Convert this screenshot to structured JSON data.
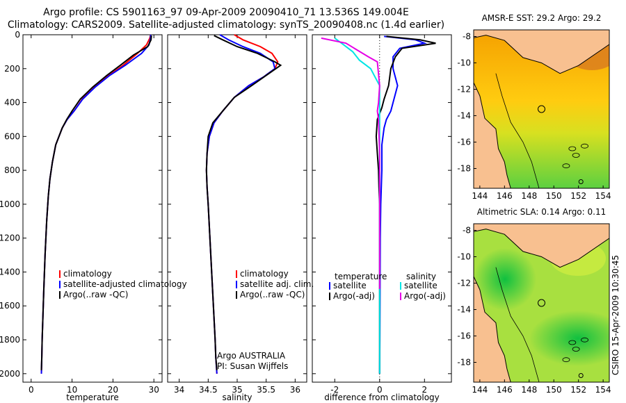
{
  "titles": {
    "line1": "Argo profile: CS 5901163_97 09-Apr-2009 20090410_71 13.536S 149.004E",
    "line2": "Climatology: CARS2009. Satellite-adjusted climatology: synTS_20090408.nc (1.4d earlier)"
  },
  "side_label": "CSIRO 15-Apr-2009 10:30:45",
  "colors": {
    "climatology": "#ff0000",
    "satellite": "#0000ff",
    "argo": "#000000",
    "sat_diff": "#00e5e5",
    "argo_diff": "#e600e6"
  },
  "chart_data": [
    {
      "type": "line",
      "name": "temperature-profile",
      "xlabel": "temperature",
      "ylabel": "",
      "xlim": [
        -2,
        32
      ],
      "ylim": [
        2050,
        0
      ],
      "xticks": [
        0,
        10,
        20,
        30
      ],
      "yticks": [
        0,
        200,
        400,
        600,
        800,
        1000,
        1200,
        1400,
        1600,
        1800,
        2000
      ],
      "legend": [
        "climatology",
        "satellite-adjusted climatology",
        "Argo(..raw -QC)"
      ],
      "series": [
        {
          "name": "climatology",
          "color": "#ff0000",
          "x": [
            29.2,
            29.0,
            28.2,
            26.0,
            22.5,
            19.0,
            15.5,
            12.5,
            10.5,
            8.8,
            7.6,
            6.0,
            5.2,
            4.6,
            4.2,
            3.8,
            3.4,
            3.1,
            2.9,
            2.7,
            2.6,
            2.5
          ],
          "y": [
            0,
            20,
            60,
            110,
            180,
            240,
            310,
            380,
            450,
            500,
            550,
            650,
            750,
            850,
            950,
            1100,
            1300,
            1500,
            1650,
            1800,
            1900,
            2000
          ]
        },
        {
          "name": "satellite-adjusted climatology",
          "color": "#0000ff",
          "x": [
            29.2,
            29.2,
            28.8,
            27.0,
            23.0,
            19.2,
            15.6,
            12.6,
            10.5,
            8.8,
            7.6,
            6.0,
            5.2,
            4.6,
            4.2,
            3.8,
            3.4,
            3.1,
            2.9,
            2.7,
            2.6,
            2.5
          ],
          "y": [
            0,
            20,
            60,
            110,
            180,
            240,
            310,
            380,
            450,
            500,
            550,
            650,
            750,
            850,
            950,
            1100,
            1300,
            1500,
            1650,
            1800,
            1900,
            2000
          ]
        },
        {
          "name": "Argo(..raw -QC)",
          "color": "#000000",
          "x": [
            29.4,
            29.3,
            28.5,
            25.0,
            21.8,
            18.5,
            15.0,
            12.0,
            10.0,
            8.7,
            7.6,
            6.0,
            5.2,
            4.6,
            4.2,
            3.8,
            3.4,
            3.1,
            2.9,
            2.7,
            2.6,
            2.5
          ],
          "y": [
            5,
            30,
            70,
            120,
            180,
            240,
            310,
            380,
            450,
            500,
            550,
            650,
            750,
            850,
            950,
            1100,
            1300,
            1500,
            1650,
            1800,
            1900,
            1980
          ]
        }
      ]
    },
    {
      "type": "line",
      "name": "salinity-profile",
      "xlabel": "salinity",
      "ylabel": "",
      "xlim": [
        33.8,
        36.2
      ],
      "ylim": [
        2050,
        0
      ],
      "xticks": [
        34,
        34.5,
        35,
        35.5,
        36
      ],
      "yticks": [
        0,
        200,
        400,
        600,
        800,
        1000,
        1200,
        1400,
        1600,
        1800,
        2000
      ],
      "legend": [
        "climatology",
        "satellite adj. clim.",
        "Argo(..raw -QC)"
      ],
      "annotations": [
        "Argo AUSTRALIA",
        "PI: Susan Wijffels"
      ],
      "series": [
        {
          "name": "climatology",
          "color": "#ff0000",
          "x": [
            34.95,
            35.1,
            35.4,
            35.6,
            35.7,
            35.65,
            35.45,
            35.2,
            34.95,
            34.75,
            34.6,
            34.52,
            34.48,
            34.47,
            34.48,
            34.5,
            34.53,
            34.56,
            34.59,
            34.62,
            34.63,
            34.65
          ],
          "y": [
            0,
            30,
            70,
            110,
            160,
            200,
            250,
            300,
            370,
            450,
            520,
            600,
            700,
            800,
            900,
            1000,
            1200,
            1400,
            1600,
            1800,
            1900,
            2000
          ]
        },
        {
          "name": "satellite adj. clim.",
          "color": "#0000ff",
          "x": [
            34.7,
            34.85,
            35.1,
            35.4,
            35.62,
            35.65,
            35.45,
            35.2,
            34.95,
            34.75,
            34.6,
            34.52,
            34.48,
            34.47,
            34.48,
            34.5,
            34.53,
            34.56,
            34.59,
            34.62,
            34.63,
            34.65
          ],
          "y": [
            0,
            30,
            70,
            110,
            160,
            200,
            250,
            300,
            370,
            450,
            520,
            600,
            700,
            800,
            900,
            1000,
            1200,
            1400,
            1600,
            1800,
            1900,
            2000
          ]
        },
        {
          "name": "Argo(..raw -QC)",
          "color": "#000000",
          "x": [
            34.6,
            34.75,
            35.0,
            35.35,
            35.65,
            35.75,
            35.5,
            35.25,
            34.95,
            34.75,
            34.58,
            34.5,
            34.48,
            34.47,
            34.48,
            34.5,
            34.53,
            34.56,
            34.59,
            34.62,
            34.63,
            34.65
          ],
          "y": [
            5,
            30,
            70,
            110,
            160,
            180,
            240,
            300,
            370,
            450,
            520,
            600,
            700,
            800,
            900,
            1000,
            1200,
            1400,
            1600,
            1800,
            1900,
            1980
          ]
        }
      ]
    },
    {
      "type": "line",
      "name": "difference-profile",
      "xlabel": "difference from climatology",
      "ylabel": "",
      "xlim": [
        -3,
        3.2
      ],
      "ylim": [
        2050,
        0
      ],
      "xticks": [
        -2,
        0,
        2
      ],
      "yticks": [
        0,
        200,
        400,
        600,
        800,
        1000,
        1200,
        1400,
        1600,
        1800,
        2000
      ],
      "legend_titles": [
        "temperature",
        "salinity"
      ],
      "legend": [
        "satellite",
        "Argo(-adj)",
        "satellite",
        "Argo(-adj)"
      ],
      "series": [
        {
          "name": "temperature satellite",
          "color": "#0000ff",
          "x": [
            0.2,
            1.6,
            2.0,
            0.9,
            0.6,
            0.6,
            0.8,
            0.6,
            0.5,
            0.3,
            0.2,
            0.1,
            0.1,
            0.05,
            0.03,
            0.02,
            0.01,
            0.0
          ],
          "y": [
            10,
            30,
            50,
            80,
            130,
            200,
            300,
            400,
            450,
            500,
            550,
            650,
            800,
            1000,
            1200,
            1500,
            1800,
            2000
          ]
        },
        {
          "name": "temperature Argo(-adj)",
          "color": "#000000",
          "x": [
            0.3,
            1.8,
            2.5,
            1.0,
            0.7,
            0.5,
            0.4,
            0.2,
            0.1,
            -0.1,
            -0.15,
            -0.1,
            -0.05,
            -0.03,
            0.0,
            0.0,
            0.0,
            0.0
          ],
          "y": [
            10,
            30,
            50,
            80,
            130,
            200,
            300,
            380,
            430,
            500,
            600,
            700,
            800,
            900,
            1000,
            1300,
            1600,
            2000
          ]
        },
        {
          "name": "salinity satellite",
          "color": "#00e5e5",
          "x": [
            -2.0,
            -1.6,
            -1.2,
            -0.9,
            -0.4,
            -0.2,
            0.0,
            0.0,
            0.0,
            0.0,
            0.0,
            0.0
          ],
          "y": [
            20,
            60,
            100,
            150,
            200,
            250,
            300,
            500,
            800,
            1200,
            1600,
            2000
          ]
        },
        {
          "name": "salinity Argo(-adj)",
          "color": "#e600e6",
          "x": [
            -2.6,
            -1.5,
            -1.0,
            -0.5,
            -0.1,
            0.0,
            -0.05,
            -0.1,
            -0.05,
            0.0,
            0.0,
            0.0
          ],
          "y": [
            20,
            50,
            90,
            130,
            160,
            300,
            400,
            450,
            500,
            700,
            1000,
            1500
          ]
        }
      ]
    },
    {
      "type": "heatmap",
      "name": "sst-map",
      "title": "AMSR-E SST: 29.2 Argo: 29.2",
      "xticks": [
        144,
        146,
        148,
        150,
        152,
        154
      ],
      "yticks": [
        -8,
        -10,
        -12,
        -14,
        -16,
        -18
      ],
      "xlim": [
        143.5,
        154.5
      ],
      "ylim": [
        -19.5,
        -7.5
      ],
      "profile_marker": {
        "lon": 149.0,
        "lat": -13.5
      }
    },
    {
      "type": "heatmap",
      "name": "sla-map",
      "title": "Altimetric SLA: 0.14 Argo: 0.11",
      "xticks": [
        144,
        146,
        148,
        150,
        152,
        154
      ],
      "yticks": [
        -8,
        -10,
        -12,
        -14,
        -16,
        -18
      ],
      "xlim": [
        143.5,
        154.5
      ],
      "ylim": [
        -19.5,
        -7.5
      ],
      "profile_marker": {
        "lon": 149.0,
        "lat": -13.5
      }
    }
  ]
}
